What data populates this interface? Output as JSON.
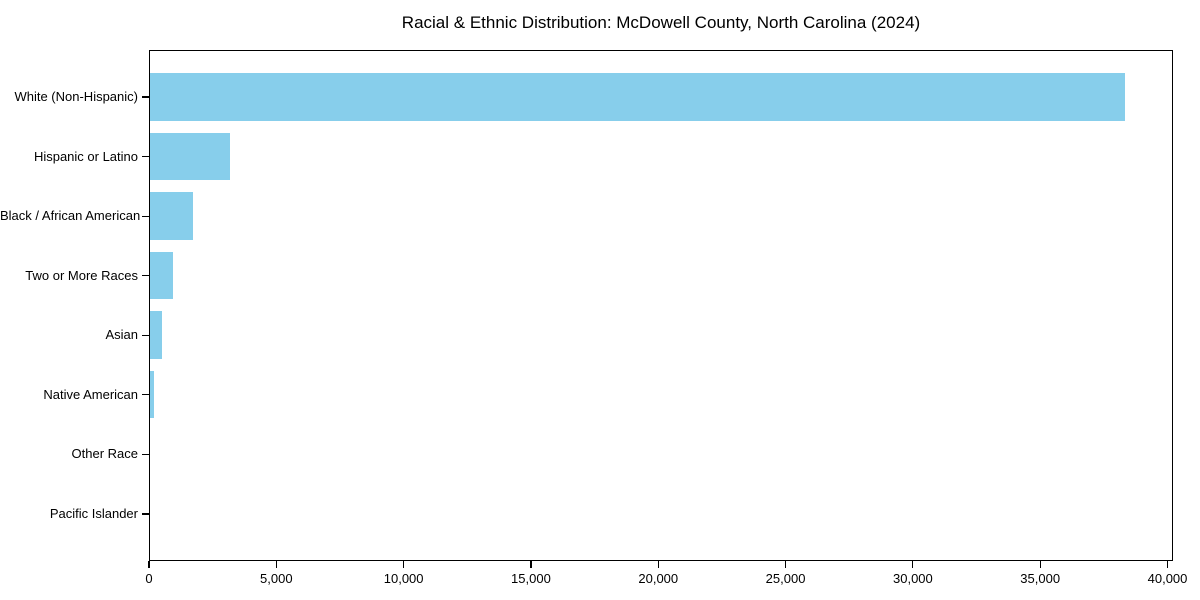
{
  "chart_data": {
    "type": "bar",
    "orientation": "horizontal",
    "title": "Racial & Ethnic Distribution: McDowell County, North Carolina (2024)",
    "categories": [
      "White (Non-Hispanic)",
      "Hispanic or Latino",
      "Black / African American",
      "Two or More Races",
      "Asian",
      "Native American",
      "Other Race",
      "Pacific Islander"
    ],
    "values": [
      38300,
      3150,
      1700,
      890,
      480,
      170,
      0,
      0
    ],
    "xlabel": "",
    "ylabel": "",
    "xlim": [
      0,
      40216
    ],
    "xticks": [
      0,
      5000,
      10000,
      15000,
      20000,
      25000,
      30000,
      35000,
      40000
    ],
    "xtick_labels": [
      "0",
      "5,000",
      "10,000",
      "15,000",
      "20,000",
      "25,000",
      "30,000",
      "35,000",
      "40,000"
    ],
    "bar_color": "#87ceeb",
    "axis_color": "#000000",
    "background_color": "#ffffff",
    "grid": false,
    "legend": null
  }
}
